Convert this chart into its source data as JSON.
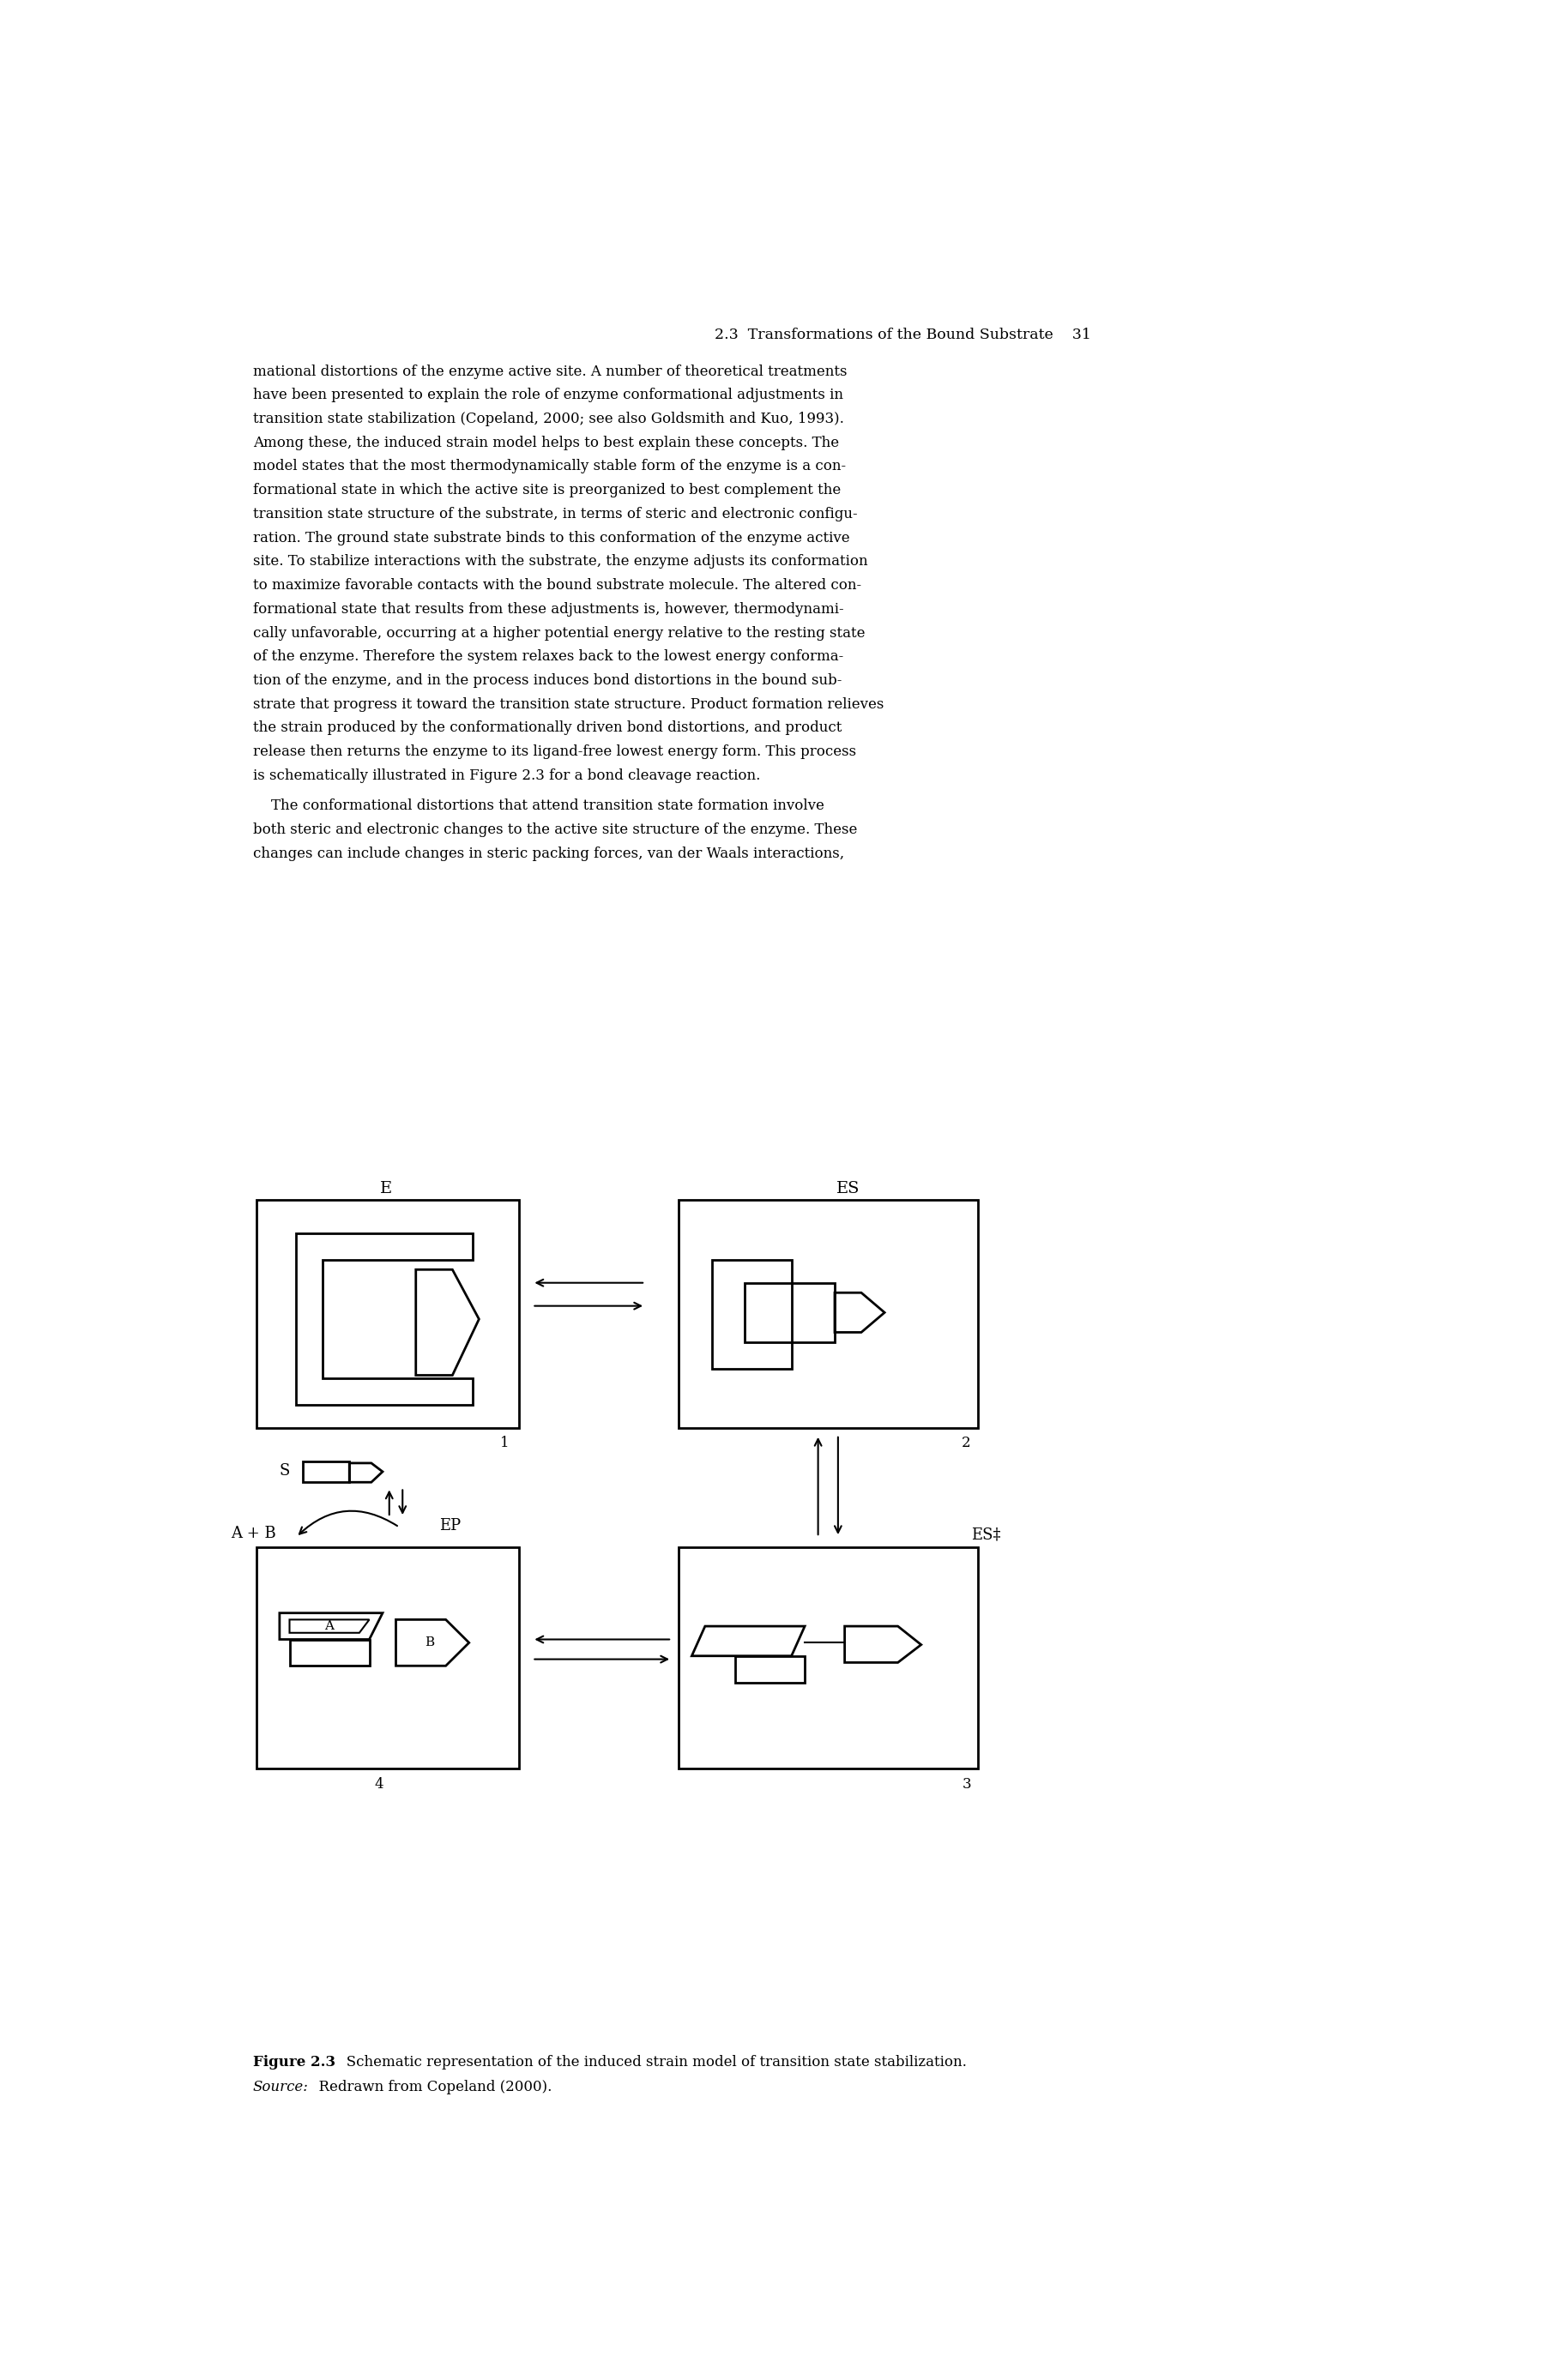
{
  "header": "2.3  Transformations of the Bound Substrate    31",
  "body_text": [
    "mational distortions of the enzyme active site. A number of theoretical treatments",
    "have been presented to explain the role of enzyme conformational adjustments in",
    "transition state stabilization (Copeland, 2000; see also Goldsmith and Kuo, 1993).",
    "Among these, the induced strain model helps to best explain these concepts. The",
    "model states that the most thermodynamically stable form of the enzyme is a con-",
    "formational state in which the active site is preorganized to best complement the",
    "transition state structure of the substrate, in terms of steric and electronic configu-",
    "ration. The ground state substrate binds to this conformation of the enzyme active",
    "site. To stabilize interactions with the substrate, the enzyme adjusts its conformation",
    "to maximize favorable contacts with the bound substrate molecule. The altered con-",
    "formational state that results from these adjustments is, however, thermodynami-",
    "cally unfavorable, occurring at a higher potential energy relative to the resting state",
    "of the enzyme. Therefore the system relaxes back to the lowest energy conforma-",
    "tion of the enzyme, and in the process induces bond distortions in the bound sub-",
    "strate that progress it toward the transition state structure. Product formation relieves",
    "the strain produced by the conformationally driven bond distortions, and product",
    "release then returns the enzyme to its ligand-free lowest energy form. This process",
    "is schematically illustrated in Figure 2.3 for a bond cleavage reaction."
  ],
  "body_text2": [
    "    The conformational distortions that attend transition state formation involve",
    "both steric and electronic changes to the active site structure of the enzyme. These",
    "changes can include changes in steric packing forces, van der Waals interactions,"
  ],
  "figure_caption_bold": "Figure 2.3",
  "figure_caption_normal": "   Schematic representation of the induced strain model of transition state stabilization.",
  "figure_caption_italic": "Source:",
  "figure_caption_source": "  Redrawn from Copeland (2000).",
  "labels": {
    "E": "E",
    "ES": "ES",
    "ES_dagger": "ES‡",
    "EP": "EP",
    "S": "S",
    "AB": "A + B",
    "num1": "1",
    "num2": "2",
    "num3": "3",
    "num4": "4"
  },
  "bg_color": "#ffffff",
  "text_color": "#000000"
}
